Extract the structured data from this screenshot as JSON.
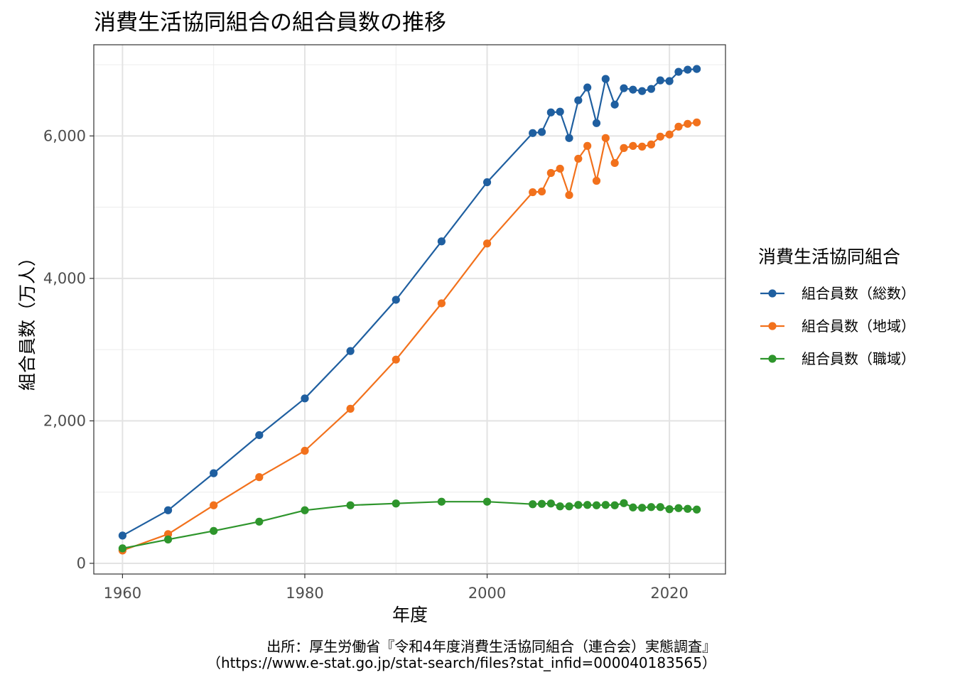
{
  "chart_data": {
    "type": "line",
    "title": "消費生活協同組合の組合員数の推移",
    "xlabel": "年度",
    "ylabel": "組合員数（万人）",
    "xlim": [
      1956.85,
      2026.15
    ],
    "ylim": [
      -150,
      7280
    ],
    "x_ticks": [
      1960,
      1980,
      2000,
      2020
    ],
    "x_tick_labels": [
      "1960",
      "1980",
      "2000",
      "2020"
    ],
    "y_ticks": [
      0,
      2000,
      4000,
      6000
    ],
    "y_tick_labels": [
      "0",
      "2,000",
      "4,000",
      "6,000"
    ],
    "grid": true,
    "legend_title": "消費生活協同組合",
    "legend_position": "right",
    "x": [
      1960,
      1965,
      1970,
      1975,
      1980,
      1985,
      1990,
      1995,
      2000,
      2005,
      2006,
      2007,
      2008,
      2009,
      2010,
      2011,
      2012,
      2013,
      2014,
      2015,
      2016,
      2017,
      2018,
      2019,
      2020,
      2021,
      2022,
      2023
    ],
    "series": [
      {
        "name": "組合員数（総数）",
        "color": "#1f5fa0",
        "values": [
          390,
          745,
          1265,
          1800,
          2315,
          2980,
          3700,
          4520,
          5350,
          6040,
          6055,
          6330,
          6340,
          5970,
          6500,
          6680,
          6180,
          6800,
          6440,
          6670,
          6650,
          6630,
          6660,
          6780,
          6770,
          6900,
          6930,
          6940
        ]
      },
      {
        "name": "組合員数（地域）",
        "color": "#f2711c",
        "values": [
          180,
          410,
          815,
          1210,
          1580,
          2170,
          2860,
          3650,
          4490,
          5210,
          5220,
          5480,
          5540,
          5170,
          5680,
          5860,
          5370,
          5970,
          5620,
          5830,
          5860,
          5850,
          5880,
          5990,
          6020,
          6130,
          6170,
          6190
        ]
      },
      {
        "name": "組合員数（職域）",
        "color": "#2e952c",
        "values": [
          210,
          335,
          455,
          585,
          745,
          815,
          840,
          865,
          865,
          830,
          835,
          840,
          800,
          800,
          820,
          820,
          815,
          820,
          815,
          845,
          785,
          780,
          790,
          790,
          760,
          775,
          765,
          755
        ]
      }
    ],
    "caption_lines": [
      "出所：厚生労働省『令和4年度消費生活協同組合（連合会）実態調査』",
      "（https://www.e-stat.go.jp/stat-search/files?stat_infid=000040183565）"
    ]
  }
}
